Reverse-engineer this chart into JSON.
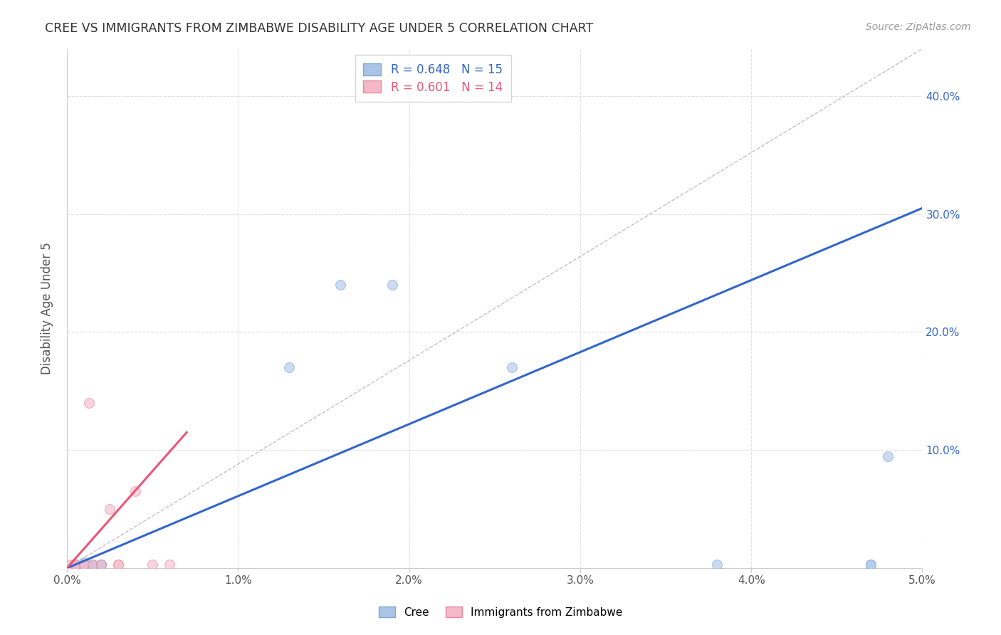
{
  "title": "CREE VS IMMIGRANTS FROM ZIMBABWE DISABILITY AGE UNDER 5 CORRELATION CHART",
  "source": "Source: ZipAtlas.com",
  "ylabel": "Disability Age Under 5",
  "xlim": [
    0.0,
    0.05
  ],
  "ylim": [
    0.0,
    0.44
  ],
  "xticks": [
    0.0,
    0.01,
    0.02,
    0.03,
    0.04,
    0.05
  ],
  "yticks": [
    0.0,
    0.1,
    0.2,
    0.3,
    0.4
  ],
  "ytick_labels": [
    "",
    "10.0%",
    "20.0%",
    "30.0%",
    "40.0%"
  ],
  "xtick_labels": [
    "0.0%",
    "1.0%",
    "2.0%",
    "3.0%",
    "4.0%",
    "5.0%"
  ],
  "blue_scatter_x": [
    0.0005,
    0.001,
    0.001,
    0.0015,
    0.0015,
    0.002,
    0.002,
    0.013,
    0.016,
    0.019,
    0.026,
    0.038,
    0.047,
    0.047,
    0.048
  ],
  "blue_scatter_y": [
    0.003,
    0.003,
    0.005,
    0.003,
    0.003,
    0.003,
    0.003,
    0.17,
    0.24,
    0.24,
    0.17,
    0.003,
    0.003,
    0.003,
    0.095
  ],
  "pink_scatter_x": [
    0.0002,
    0.0004,
    0.0005,
    0.001,
    0.001,
    0.0013,
    0.0015,
    0.002,
    0.0025,
    0.003,
    0.003,
    0.004,
    0.005,
    0.006
  ],
  "pink_scatter_y": [
    0.003,
    0.003,
    0.003,
    0.003,
    0.003,
    0.14,
    0.003,
    0.003,
    0.05,
    0.003,
    0.003,
    0.065,
    0.003,
    0.003
  ],
  "blue_line_x": [
    0.0,
    0.05
  ],
  "blue_line_y": [
    0.0,
    0.305
  ],
  "pink_line_x": [
    0.0,
    0.007
  ],
  "pink_line_y": [
    0.0,
    0.115
  ],
  "blue_R": 0.648,
  "blue_N": 15,
  "pink_R": 0.601,
  "pink_N": 14,
  "blue_scatter_color": "#aac4e8",
  "pink_scatter_color": "#f4b8c8",
  "blue_edge_color": "#7aaad4",
  "pink_edge_color": "#e88aa0",
  "blue_line_color": "#3366cc",
  "pink_line_color": "#ee5577",
  "ref_line_color": "#ccbbcc",
  "scatter_size": 100,
  "scatter_alpha": 0.6,
  "background_color": "#ffffff",
  "grid_color": "#e0e0e0",
  "axis_color": "#cccccc",
  "title_color": "#333333",
  "ylabel_color": "#555555",
  "tick_label_color_blue": "#3366cc",
  "tick_label_color_x": "#555555",
  "legend_label1": "Cree",
  "legend_label2": "Immigrants from Zimbabwe"
}
